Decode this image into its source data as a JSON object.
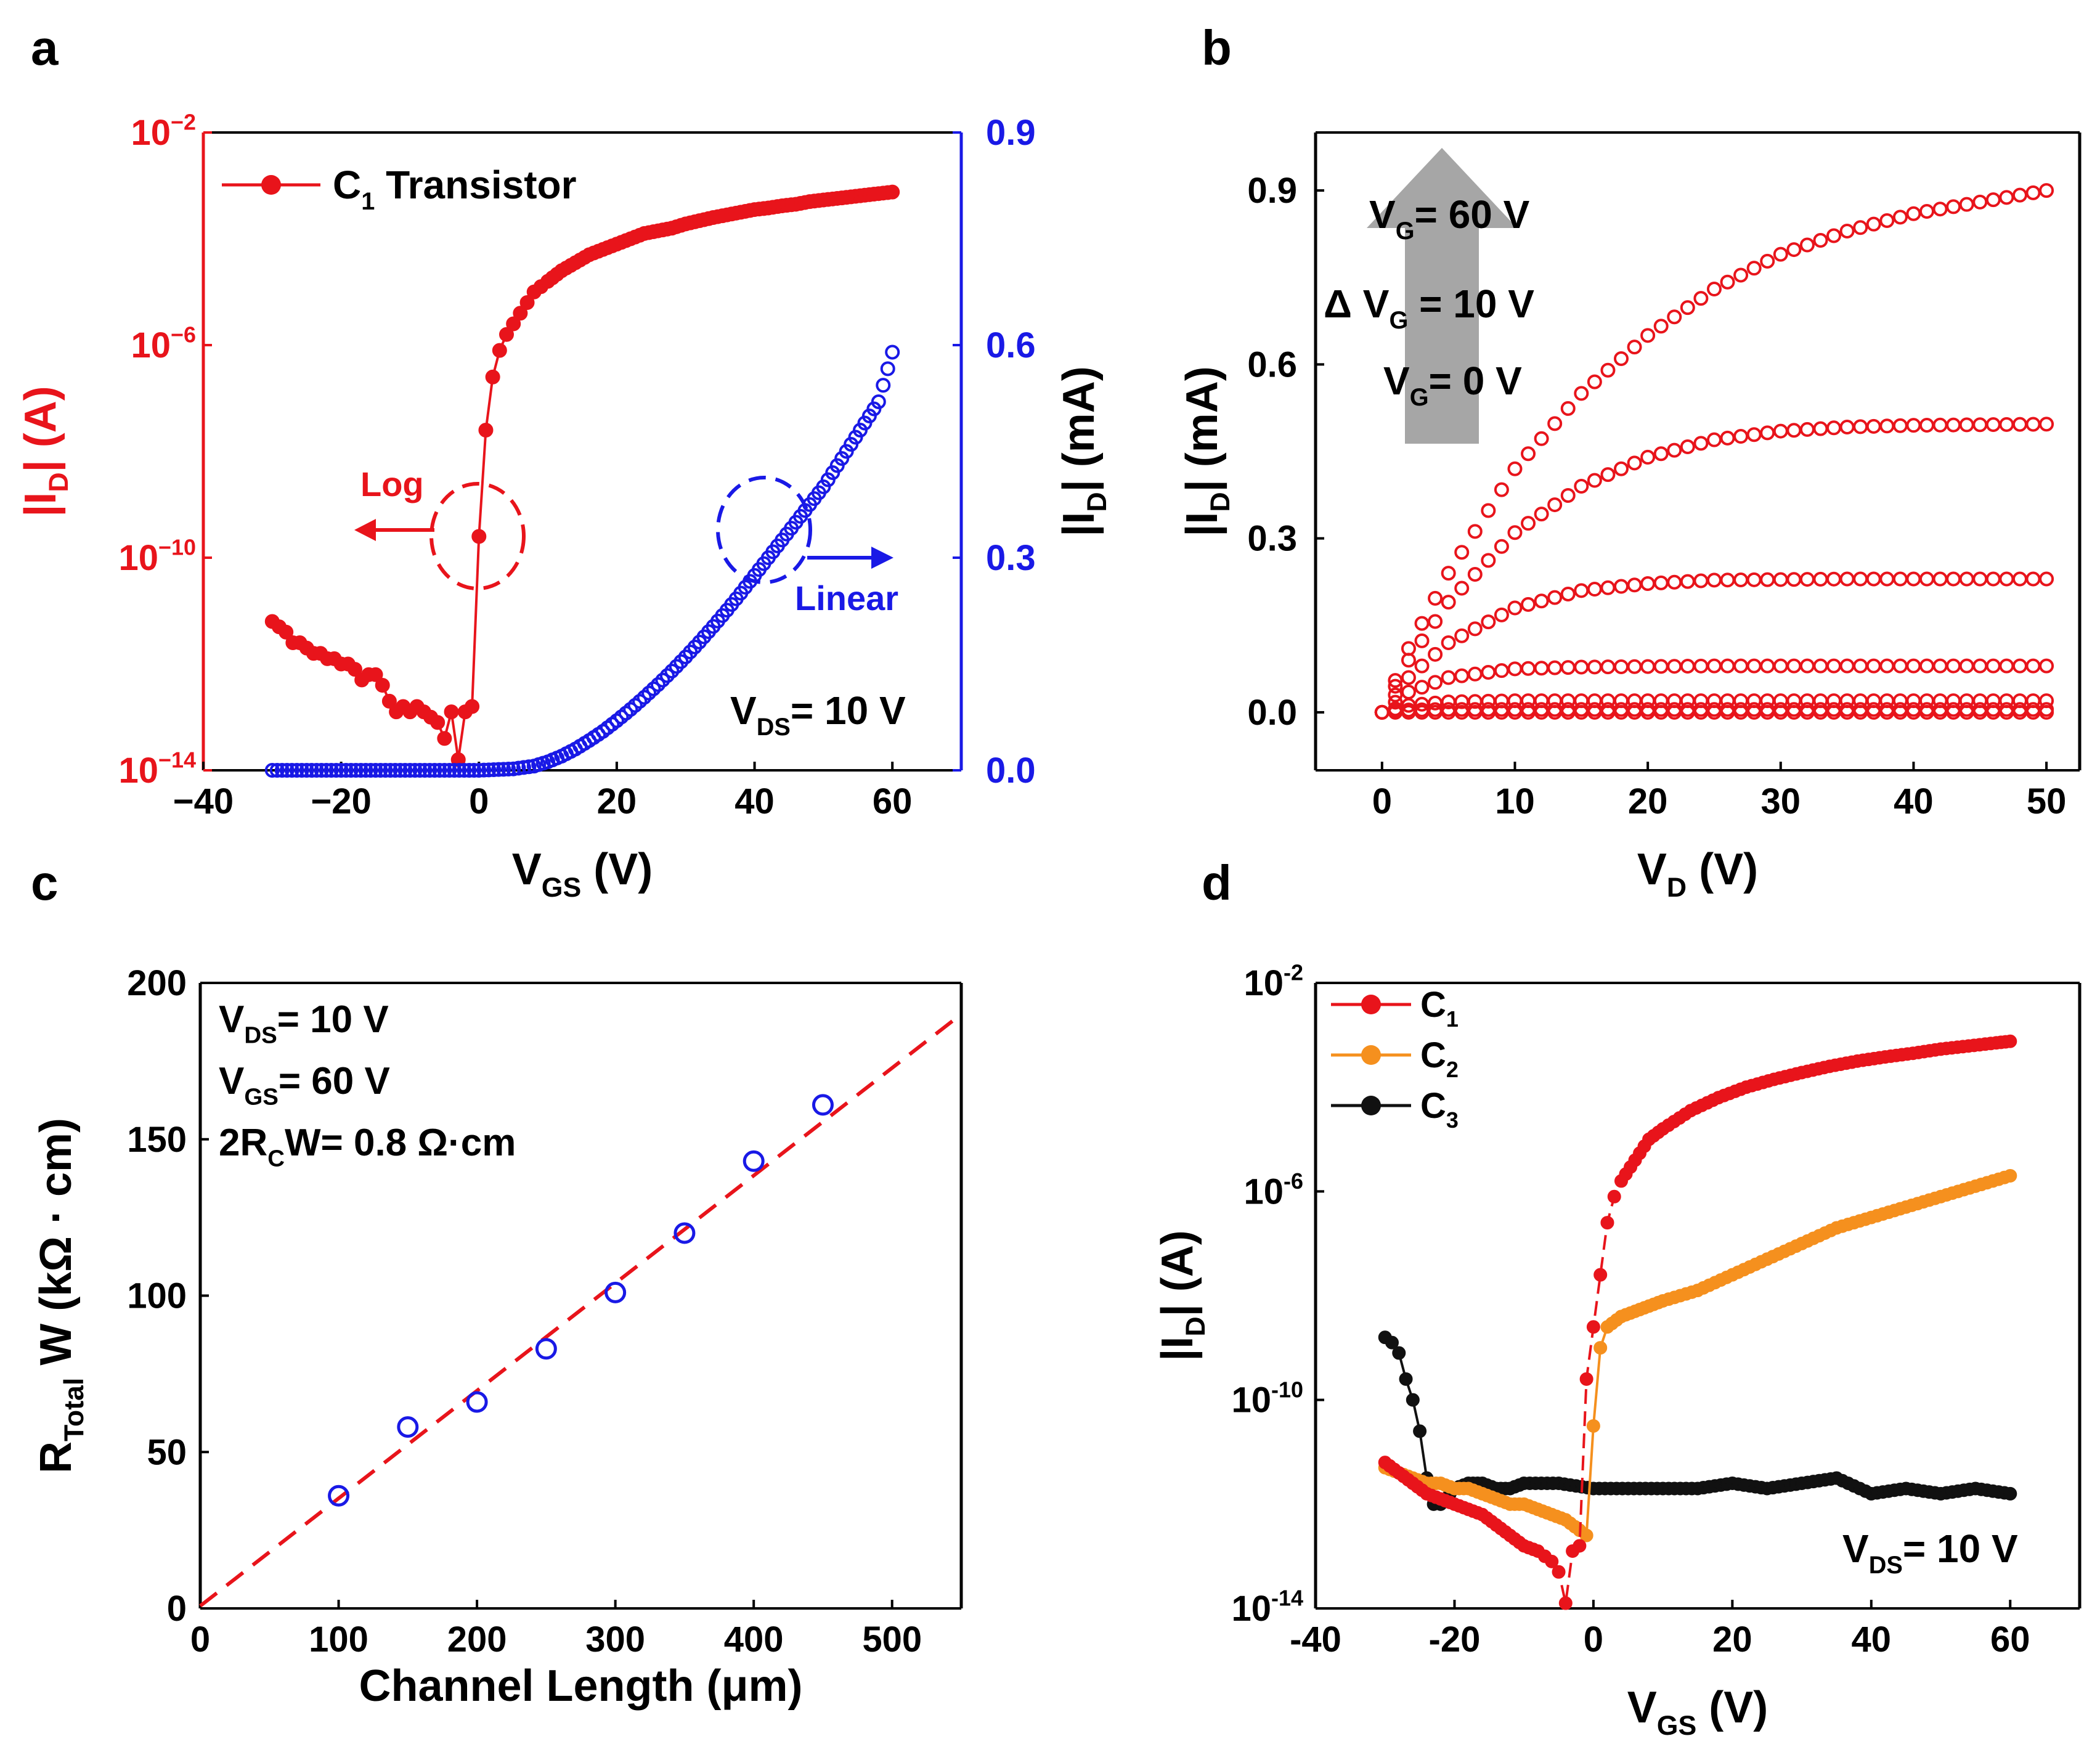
{
  "panels": {
    "a": {
      "label": "a"
    },
    "b": {
      "label": "b"
    },
    "c": {
      "label": "c"
    },
    "d": {
      "label": "d"
    }
  },
  "chart_data": [
    {
      "id": "a",
      "type": "line",
      "title": "",
      "xlabel": "V",
      "xlabel_sub": "GS",
      "xlabel_unit": " (V)",
      "xlim": [
        -40,
        70
      ],
      "xticks": [
        -40,
        -20,
        0,
        20,
        40,
        60
      ],
      "xtick_labels": [
        "−40",
        "−20",
        "0",
        "20",
        "40",
        "60"
      ],
      "ylabel_left": "|I",
      "ylabel_left_sub": "D",
      "ylabel_left_unit": "| (A)",
      "ylim_left_log10": [
        -14,
        -2
      ],
      "yticks_left_exp": [
        -14,
        -10,
        -6,
        -2
      ],
      "ytick_left_labels": [
        "10",
        "10",
        "10",
        "10"
      ],
      "ytick_left_sups": [
        "−14",
        "−10",
        "−6",
        "−2"
      ],
      "ylabel_right": "|I",
      "ylabel_right_sub": "D",
      "ylabel_right_unit": "| (mA)",
      "ylim_right": [
        0,
        0.9
      ],
      "yticks_right": [
        0.0,
        0.3,
        0.6,
        0.9
      ],
      "ytick_right_labels": [
        "0.0",
        "0.3",
        "0.6",
        "0.9"
      ],
      "legend": {
        "label": "C",
        "label_sub": "1",
        "label_rest": " Transistor",
        "location": "top-left"
      },
      "annotations": {
        "vds_main": "V",
        "vds_sub": "DS",
        "vds_rest": "= 10 V",
        "log_label": "Log",
        "linear_label": "Linear"
      },
      "series": [
        {
          "name": "C1 Transistor (log)",
          "color": "#e8141b",
          "axis": "left",
          "scale": "log10",
          "x": [
            -30,
            -29,
            -28,
            -27,
            -26,
            -25,
            -24,
            -23,
            -22,
            -21,
            -20,
            -19,
            -18,
            -17,
            -16,
            -15,
            -14,
            -13,
            -12,
            -11,
            -10,
            -9,
            -8,
            -7,
            -6,
            -5,
            -4,
            -3,
            -2,
            -1,
            0,
            1,
            2,
            3,
            4,
            5,
            6,
            7,
            8,
            9,
            10,
            12,
            14,
            16,
            18,
            20,
            22,
            24,
            26,
            28,
            30,
            32,
            34,
            36,
            38,
            40,
            42,
            44,
            46,
            48,
            50,
            52,
            54,
            56,
            58,
            60
          ],
          "y": [
            -11.2,
            -11.3,
            -11.4,
            -11.6,
            -11.6,
            -11.7,
            -11.8,
            -11.8,
            -11.9,
            -11.9,
            -12.0,
            -12.0,
            -12.1,
            -12.3,
            -12.2,
            -12.2,
            -12.4,
            -12.7,
            -12.9,
            -12.8,
            -12.9,
            -12.8,
            -12.9,
            -13.0,
            -13.1,
            -13.4,
            -12.9,
            -13.8,
            -12.9,
            -12.8,
            -9.6,
            -7.6,
            -6.6,
            -6.1,
            -5.8,
            -5.6,
            -5.4,
            -5.2,
            -5.0,
            -4.9,
            -4.8,
            -4.6,
            -4.45,
            -4.3,
            -4.2,
            -4.1,
            -4.0,
            -3.9,
            -3.85,
            -3.8,
            -3.72,
            -3.66,
            -3.6,
            -3.55,
            -3.5,
            -3.45,
            -3.42,
            -3.38,
            -3.35,
            -3.3,
            -3.27,
            -3.24,
            -3.21,
            -3.18,
            -3.15,
            -3.12
          ]
        },
        {
          "name": "C1 Transistor (linear)",
          "color": "#1919e6",
          "axis": "right",
          "unit": "mA",
          "x": [
            -30,
            -25,
            -20,
            -15,
            -10,
            -5,
            0,
            5,
            8,
            10,
            12,
            14,
            16,
            18,
            20,
            22,
            24,
            26,
            28,
            30,
            32,
            34,
            36,
            38,
            40,
            42,
            44,
            46,
            48,
            50,
            52,
            54,
            56,
            58,
            60
          ],
          "y": [
            0.0,
            0.0,
            0.0,
            0.0,
            0.0,
            0.0,
            0.0,
            0.002,
            0.006,
            0.012,
            0.02,
            0.03,
            0.042,
            0.055,
            0.07,
            0.086,
            0.103,
            0.121,
            0.14,
            0.16,
            0.181,
            0.203,
            0.226,
            0.25,
            0.275,
            0.3,
            0.325,
            0.35,
            0.375,
            0.4,
            0.43,
            0.46,
            0.49,
            0.52,
            0.59
          ]
        }
      ]
    },
    {
      "id": "b",
      "type": "line",
      "title": "",
      "xlabel": "V",
      "xlabel_sub": "D",
      "xlabel_unit": " (V)",
      "xlim": [
        -5,
        52.5
      ],
      "xticks": [
        0,
        10,
        20,
        30,
        40,
        50
      ],
      "xtick_labels": [
        "0",
        "10",
        "20",
        "30",
        "40",
        "50"
      ],
      "ylabel": "|I",
      "ylabel_sub": "D",
      "ylabel_unit": "| (mA)",
      "ylim": [
        -0.1,
        1.0
      ],
      "yticks": [
        0.0,
        0.3,
        0.6,
        0.9
      ],
      "ytick_labels": [
        "0.0",
        "0.3",
        "0.6",
        "0.9"
      ],
      "annotations": {
        "vg_top_main": "V",
        "vg_top_sub": "G",
        "vg_top_rest": "= 60 V",
        "delta_main": "Δ V",
        "delta_sub": "G",
        "delta_rest": " = 10 V",
        "vg_bottom_main": "V",
        "vg_bottom_sub": "G",
        "vg_bottom_rest": "= 0 V"
      },
      "series": [
        {
          "name": "VG = 60 V",
          "color": "#e8141b",
          "x": [
            0,
            2,
            5,
            10,
            15,
            20,
            25,
            30,
            35,
            40,
            45,
            50
          ],
          "y": [
            0.0,
            0.11,
            0.24,
            0.42,
            0.55,
            0.65,
            0.73,
            0.79,
            0.83,
            0.86,
            0.88,
            0.9
          ]
        },
        {
          "name": "VG = 50 V",
          "color": "#e8141b",
          "x": [
            0,
            2,
            5,
            10,
            15,
            20,
            25,
            30,
            35,
            40,
            45,
            50
          ],
          "y": [
            0.0,
            0.09,
            0.19,
            0.31,
            0.39,
            0.44,
            0.47,
            0.485,
            0.492,
            0.495,
            0.496,
            0.497
          ]
        },
        {
          "name": "VG = 40 V",
          "color": "#e8141b",
          "x": [
            0,
            2,
            5,
            10,
            15,
            20,
            25,
            30,
            35,
            40,
            45,
            50
          ],
          "y": [
            0.0,
            0.06,
            0.12,
            0.18,
            0.21,
            0.222,
            0.228,
            0.229,
            0.23,
            0.23,
            0.23,
            0.23
          ]
        },
        {
          "name": "VG = 30 V",
          "color": "#e8141b",
          "x": [
            0,
            2,
            5,
            10,
            15,
            20,
            25,
            30,
            35,
            40,
            45,
            50
          ],
          "y": [
            0.0,
            0.035,
            0.06,
            0.075,
            0.078,
            0.079,
            0.08,
            0.08,
            0.08,
            0.08,
            0.08,
            0.08
          ]
        },
        {
          "name": "VG = 20 V",
          "color": "#e8141b",
          "x": [
            0,
            2,
            5,
            10,
            15,
            20,
            25,
            30,
            35,
            40,
            45,
            50
          ],
          "y": [
            0.0,
            0.012,
            0.018,
            0.02,
            0.02,
            0.02,
            0.02,
            0.02,
            0.02,
            0.02,
            0.02,
            0.02
          ]
        },
        {
          "name": "VG = 10 V",
          "color": "#e8141b",
          "x": [
            0,
            2,
            5,
            10,
            15,
            20,
            25,
            30,
            35,
            40,
            45,
            50
          ],
          "y": [
            0.0,
            0.004,
            0.005,
            0.005,
            0.005,
            0.005,
            0.005,
            0.005,
            0.005,
            0.005,
            0.005,
            0.005
          ]
        },
        {
          "name": "VG = 0 V",
          "color": "#e8141b",
          "x": [
            0,
            2,
            5,
            10,
            15,
            20,
            25,
            30,
            35,
            40,
            45,
            50
          ],
          "y": [
            0.0,
            0.0,
            0.0,
            0.0,
            0.0,
            0.0,
            0.0,
            0.0,
            0.0,
            0.0,
            0.0,
            0.0
          ]
        }
      ]
    },
    {
      "id": "c",
      "type": "scatter",
      "title": "",
      "xlabel": "Channel Length (μm)",
      "xlim": [
        0,
        550
      ],
      "xticks": [
        0,
        100,
        200,
        300,
        400,
        500
      ],
      "xtick_labels": [
        "0",
        "100",
        "200",
        "300",
        "400",
        "500"
      ],
      "ylabel": "R",
      "ylabel_sub": "Total",
      "ylabel_rest": " W (kΩ · cm)",
      "ylim": [
        0,
        200
      ],
      "yticks": [
        0,
        50,
        100,
        150,
        200
      ],
      "ytick_labels": [
        "0",
        "50",
        "100",
        "150",
        "200"
      ],
      "annotations": {
        "vds_main": "V",
        "vds_sub": "DS",
        "vds_rest": "= 10 V",
        "vgs_main": "V",
        "vgs_sub": "GS",
        "vgs_rest": "= 60 V",
        "rc_pre": "2R",
        "rc_sub": "C",
        "rc_rest": "W= 0.8 Ω·cm"
      },
      "series": [
        {
          "name": "measured",
          "color": "#1919e6",
          "marker": "open-circle",
          "x": [
            100,
            150,
            200,
            250,
            300,
            350,
            400,
            450
          ],
          "y": [
            36,
            58,
            66,
            83,
            101,
            120,
            143,
            161
          ]
        }
      ],
      "fit": {
        "name": "linear fit",
        "color": "#e8141b",
        "style": "dashed",
        "x": [
          0,
          550
        ],
        "y": [
          0.8,
          190
        ]
      }
    },
    {
      "id": "d",
      "type": "line",
      "title": "",
      "xlabel": "V",
      "xlabel_sub": "GS",
      "xlabel_unit": " (V)",
      "xlim": [
        -40,
        70
      ],
      "xticks": [
        -40,
        -20,
        0,
        20,
        40,
        60
      ],
      "xtick_labels": [
        "-40",
        "-20",
        "0",
        "20",
        "40",
        "60"
      ],
      "ylabel": "|I",
      "ylabel_sub": "D",
      "ylabel_unit": "| (A)",
      "ylim_log10": [
        -14,
        -2
      ],
      "yticks_exp": [
        -14,
        -10,
        -6,
        -2
      ],
      "ytick_labels": [
        "10",
        "10",
        "10",
        "10"
      ],
      "ytick_sups": [
        "-14",
        "-10",
        "-6",
        "-2"
      ],
      "annotations": {
        "vds_main": "V",
        "vds_sub": "DS",
        "vds_rest": "= 10 V"
      },
      "legend": [
        {
          "label": "C",
          "sub": "1",
          "color": "#e8141b"
        },
        {
          "label": "C",
          "sub": "2",
          "color": "#f5901e"
        },
        {
          "label": "C",
          "sub": "3",
          "color": "#111111"
        }
      ],
      "series": [
        {
          "name": "C1",
          "color": "#e8141b",
          "scale": "log10",
          "x": [
            -30,
            -28,
            -26,
            -24,
            -22,
            -20,
            -18,
            -16,
            -14,
            -12,
            -10,
            -8,
            -7,
            -6,
            -5,
            -4,
            -3,
            -2,
            -1,
            0,
            1,
            2,
            3,
            4,
            6,
            8,
            10,
            14,
            18,
            22,
            26,
            30,
            34,
            38,
            42,
            46,
            50,
            54,
            58,
            60
          ],
          "y": [
            -11.2,
            -11.4,
            -11.6,
            -11.8,
            -11.9,
            -12.0,
            -12.1,
            -12.2,
            -12.4,
            -12.6,
            -12.8,
            -12.9,
            -13.0,
            -13.1,
            -13.3,
            -13.9,
            -12.9,
            -12.8,
            -9.6,
            -8.6,
            -7.6,
            -6.6,
            -6.1,
            -5.8,
            -5.4,
            -5.0,
            -4.8,
            -4.45,
            -4.2,
            -4.0,
            -3.85,
            -3.72,
            -3.6,
            -3.5,
            -3.42,
            -3.35,
            -3.27,
            -3.21,
            -3.15,
            -3.12
          ]
        },
        {
          "name": "C2",
          "color": "#f5901e",
          "scale": "log10",
          "x": [
            -30,
            -28,
            -26,
            -24,
            -22,
            -20,
            -18,
            -16,
            -14,
            -12,
            -10,
            -8,
            -6,
            -4,
            -2,
            -1,
            0,
            1,
            2,
            4,
            6,
            8,
            10,
            15,
            20,
            25,
            30,
            35,
            40,
            45,
            50,
            55,
            60
          ],
          "y": [
            -11.3,
            -11.4,
            -11.5,
            -11.6,
            -11.6,
            -11.7,
            -11.7,
            -11.8,
            -11.9,
            -12.0,
            -12.0,
            -12.1,
            -12.2,
            -12.3,
            -12.5,
            -12.6,
            -10.5,
            -9.0,
            -8.6,
            -8.4,
            -8.3,
            -8.2,
            -8.1,
            -7.9,
            -7.6,
            -7.3,
            -7.0,
            -6.7,
            -6.5,
            -6.3,
            -6.1,
            -5.9,
            -5.7
          ]
        },
        {
          "name": "C3",
          "color": "#111111",
          "scale": "log10",
          "x": [
            -30,
            -29,
            -28,
            -27,
            -26,
            -25,
            -24,
            -23,
            -22,
            -20,
            -18,
            -16,
            -14,
            -12,
            -10,
            -5,
            0,
            5,
            10,
            15,
            20,
            25,
            30,
            35,
            40,
            45,
            50,
            55,
            60
          ],
          "y": [
            -8.8,
            -8.9,
            -9.1,
            -9.6,
            -10.0,
            -10.6,
            -11.5,
            -12.0,
            -12.0,
            -11.7,
            -11.6,
            -11.6,
            -11.7,
            -11.7,
            -11.6,
            -11.6,
            -11.7,
            -11.7,
            -11.7,
            -11.7,
            -11.6,
            -11.7,
            -11.6,
            -11.5,
            -11.8,
            -11.7,
            -11.8,
            -11.7,
            -11.8
          ]
        }
      ]
    }
  ]
}
